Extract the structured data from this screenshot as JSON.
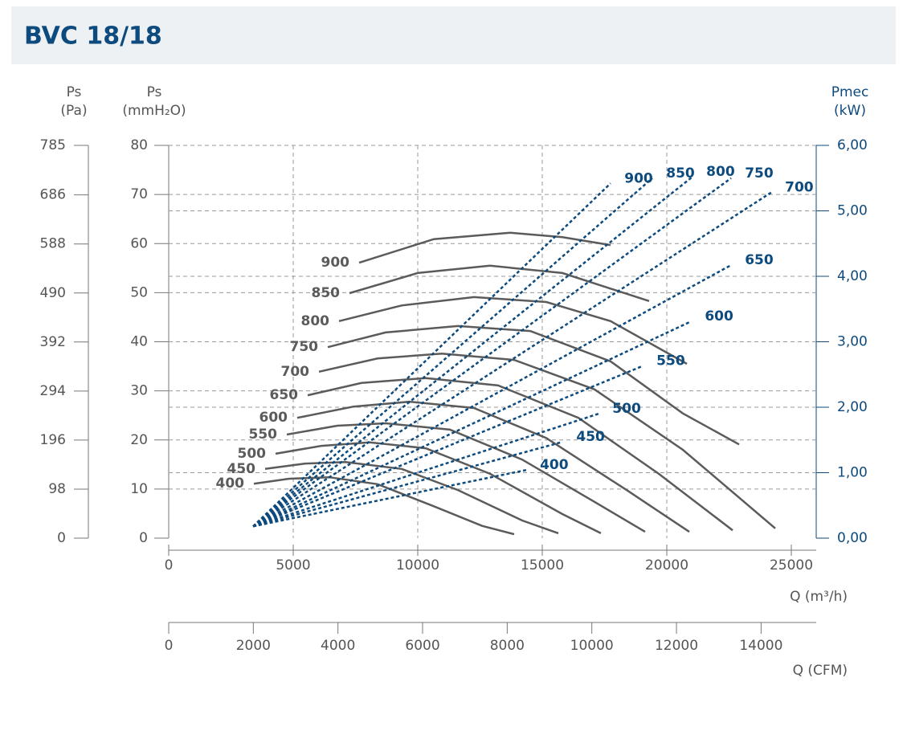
{
  "chart_data": {
    "type": "line",
    "title": "BVC 18/18",
    "pa_label": [
      "Ps",
      "(Pa)"
    ],
    "pa_lim": [
      0,
      785
    ],
    "pa_ticks": [
      0,
      98,
      196,
      294,
      392,
      490,
      588,
      686,
      785
    ],
    "ylabel": [
      "Ps",
      "(mmH₂O)"
    ],
    "ylim": [
      0,
      80
    ],
    "yticks": [
      0,
      10,
      20,
      30,
      40,
      50,
      60,
      70,
      80
    ],
    "y2label": [
      "Pmec",
      "(kW)"
    ],
    "y2lim": [
      0,
      6
    ],
    "y2ticks": [
      {
        "value": 0,
        "label": "0,00"
      },
      {
        "value": 1,
        "label": "1,00"
      },
      {
        "value": 2,
        "label": "2,00"
      },
      {
        "value": 3,
        "label": "3,00"
      },
      {
        "value": 4,
        "label": "4,00"
      },
      {
        "value": 5,
        "label": "5,00"
      },
      {
        "value": 6,
        "label": "6,00"
      }
    ],
    "xlabel": "Q (m³/h)",
    "xlim": [
      0,
      26000
    ],
    "xticks": [
      0,
      5000,
      10000,
      15000,
      20000,
      25000
    ],
    "cfm_label": "Q (CFM)",
    "cfm_lim": [
      0,
      15303
    ],
    "cfm_ticks": [
      0,
      2000,
      4000,
      6000,
      8000,
      10000,
      12000,
      14000
    ],
    "grid": true,
    "series": [
      {
        "name": "900",
        "color": "#5b5b5b",
        "axis": "y",
        "x": [
          7645,
          10645,
          13710,
          15806,
          17742
        ],
        "values": [
          56.1,
          60.9,
          62.2,
          61.3,
          59.7
        ]
      },
      {
        "name": "850",
        "color": "#5b5b5b",
        "axis": "y",
        "x": [
          7258,
          10000,
          12903,
          15806,
          19290
        ],
        "values": [
          49.9,
          54.0,
          55.5,
          54.0,
          48.3
        ]
      },
      {
        "name": "800",
        "color": "#5b5b5b",
        "axis": "y",
        "x": [
          6839,
          9355,
          12258,
          15161,
          17742,
          20806
        ],
        "values": [
          44.2,
          47.4,
          49.1,
          48.1,
          44.2,
          35.5
        ]
      },
      {
        "name": "750",
        "color": "#5b5b5b",
        "axis": "y",
        "x": [
          6387,
          8710,
          11613,
          14516,
          17742,
          20645,
          22903
        ],
        "values": [
          38.9,
          41.9,
          43.2,
          42.2,
          36.0,
          25.4,
          19.1
        ]
      },
      {
        "name": "700",
        "color": "#5b5b5b",
        "axis": "y",
        "x": [
          6032,
          8387,
          10968,
          13871,
          17097,
          20645,
          24355
        ],
        "values": [
          33.9,
          36.6,
          37.6,
          36.3,
          30.3,
          18.0,
          2.0
        ]
      },
      {
        "name": "650",
        "color": "#5b5b5b",
        "axis": "y",
        "x": [
          5581,
          7742,
          10323,
          13226,
          16452,
          19677,
          22645
        ],
        "values": [
          29.1,
          31.6,
          32.6,
          31.1,
          24.5,
          13.1,
          1.6
        ]
      },
      {
        "name": "600",
        "color": "#5b5b5b",
        "axis": "y",
        "x": [
          5161,
          7419,
          9677,
          12258,
          15161,
          18387,
          20903
        ],
        "values": [
          24.5,
          26.8,
          27.8,
          26.5,
          20.4,
          9.8,
          1.3
        ]
      },
      {
        "name": "550",
        "color": "#5b5b5b",
        "axis": "y",
        "x": [
          4742,
          6774,
          8710,
          11290,
          14194,
          17097,
          19129
        ],
        "values": [
          21.1,
          22.9,
          23.4,
          22.1,
          16.0,
          7.4,
          1.3
        ]
      },
      {
        "name": "500",
        "color": "#5b5b5b",
        "axis": "y",
        "x": [
          4290,
          6129,
          8065,
          10323,
          12903,
          15806,
          17355
        ],
        "values": [
          17.2,
          18.8,
          19.5,
          18.3,
          13.1,
          4.9,
          1.0
        ]
      },
      {
        "name": "450",
        "color": "#5b5b5b",
        "axis": "y",
        "x": [
          3871,
          5484,
          7097,
          9355,
          11613,
          14194,
          15645
        ],
        "values": [
          14.1,
          15.2,
          15.5,
          14.1,
          9.8,
          3.6,
          1.0
        ]
      },
      {
        "name": "400",
        "color": "#5b5b5b",
        "axis": "y",
        "x": [
          3419,
          4839,
          6452,
          8387,
          10645,
          12581,
          13871
        ],
        "values": [
          11.1,
          12.1,
          12.4,
          11.0,
          6.5,
          2.5,
          0.8
        ]
      },
      {
        "name": "900",
        "color": "#0d4a7d",
        "axis": "y2",
        "x": [
          3390,
          17742
        ],
        "values": [
          0.18,
          5.42
        ]
      },
      {
        "name": "850",
        "color": "#0d4a7d",
        "axis": "y2",
        "x": [
          3390,
          19420
        ],
        "values": [
          0.18,
          5.5
        ]
      },
      {
        "name": "800",
        "color": "#0d4a7d",
        "axis": "y2",
        "x": [
          3390,
          21030
        ],
        "values": [
          0.18,
          5.52
        ]
      },
      {
        "name": "750",
        "color": "#0d4a7d",
        "axis": "y2",
        "x": [
          3390,
          22580
        ],
        "values": [
          0.18,
          5.5
        ]
      },
      {
        "name": "700",
        "color": "#0d4a7d",
        "axis": "y2",
        "x": [
          3390,
          24190
        ],
        "values": [
          0.18,
          5.28
        ]
      },
      {
        "name": "650",
        "color": "#0d4a7d",
        "axis": "y2",
        "x": [
          3390,
          22580
        ],
        "values": [
          0.18,
          4.17
        ]
      },
      {
        "name": "600",
        "color": "#0d4a7d",
        "axis": "y2",
        "x": [
          3390,
          20970
        ],
        "values": [
          0.18,
          3.31
        ]
      },
      {
        "name": "550",
        "color": "#0d4a7d",
        "axis": "y2",
        "x": [
          3390,
          19030
        ],
        "values": [
          0.18,
          2.63
        ]
      },
      {
        "name": "500",
        "color": "#0d4a7d",
        "axis": "y2",
        "x": [
          3390,
          17260
        ],
        "values": [
          0.18,
          1.9
        ]
      },
      {
        "name": "450",
        "color": "#0d4a7d",
        "axis": "y2",
        "x": [
          3390,
          15810
        ],
        "values": [
          0.18,
          1.47
        ]
      },
      {
        "name": "400",
        "color": "#0d4a7d",
        "axis": "y2",
        "x": [
          3390,
          14350
        ],
        "values": [
          0.18,
          1.04
        ]
      }
    ]
  }
}
